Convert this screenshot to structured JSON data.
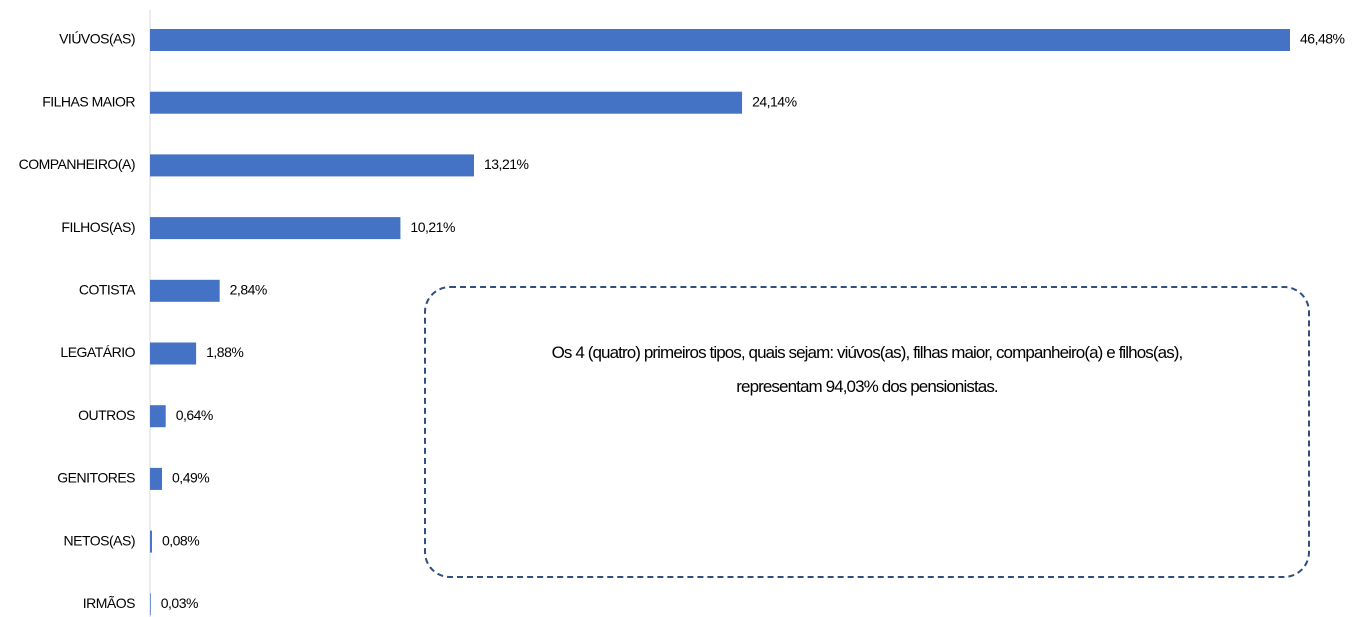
{
  "chart_data": {
    "type": "hbar",
    "categories": [
      "VIÚVOS(AS)",
      "FILHAS MAIOR",
      "COMPANHEIRO(A)",
      "FILHOS(AS)",
      "COTISTA",
      "LEGATÁRIO",
      "OUTROS",
      "GENITORES",
      "NETOS(AS)",
      "IRMÃOS"
    ],
    "values": [
      46.48,
      24.14,
      13.21,
      10.21,
      2.84,
      1.88,
      0.64,
      0.49,
      0.08,
      0.03
    ],
    "value_labels": [
      "46,48%",
      "24,14%",
      "13,21%",
      "10,21%",
      "2,84%",
      "1,88%",
      "0,64%",
      "0,49%",
      "0,08%",
      "0,03%"
    ],
    "color": "#4472c4",
    "annotation": [
      "Os 4 (quatro) primeiros tipos, quais sejam: viúvos(as), filhas maior, companheiro(a) e filhos(as),",
      "representam 94,03% dos pensionistas."
    ]
  }
}
